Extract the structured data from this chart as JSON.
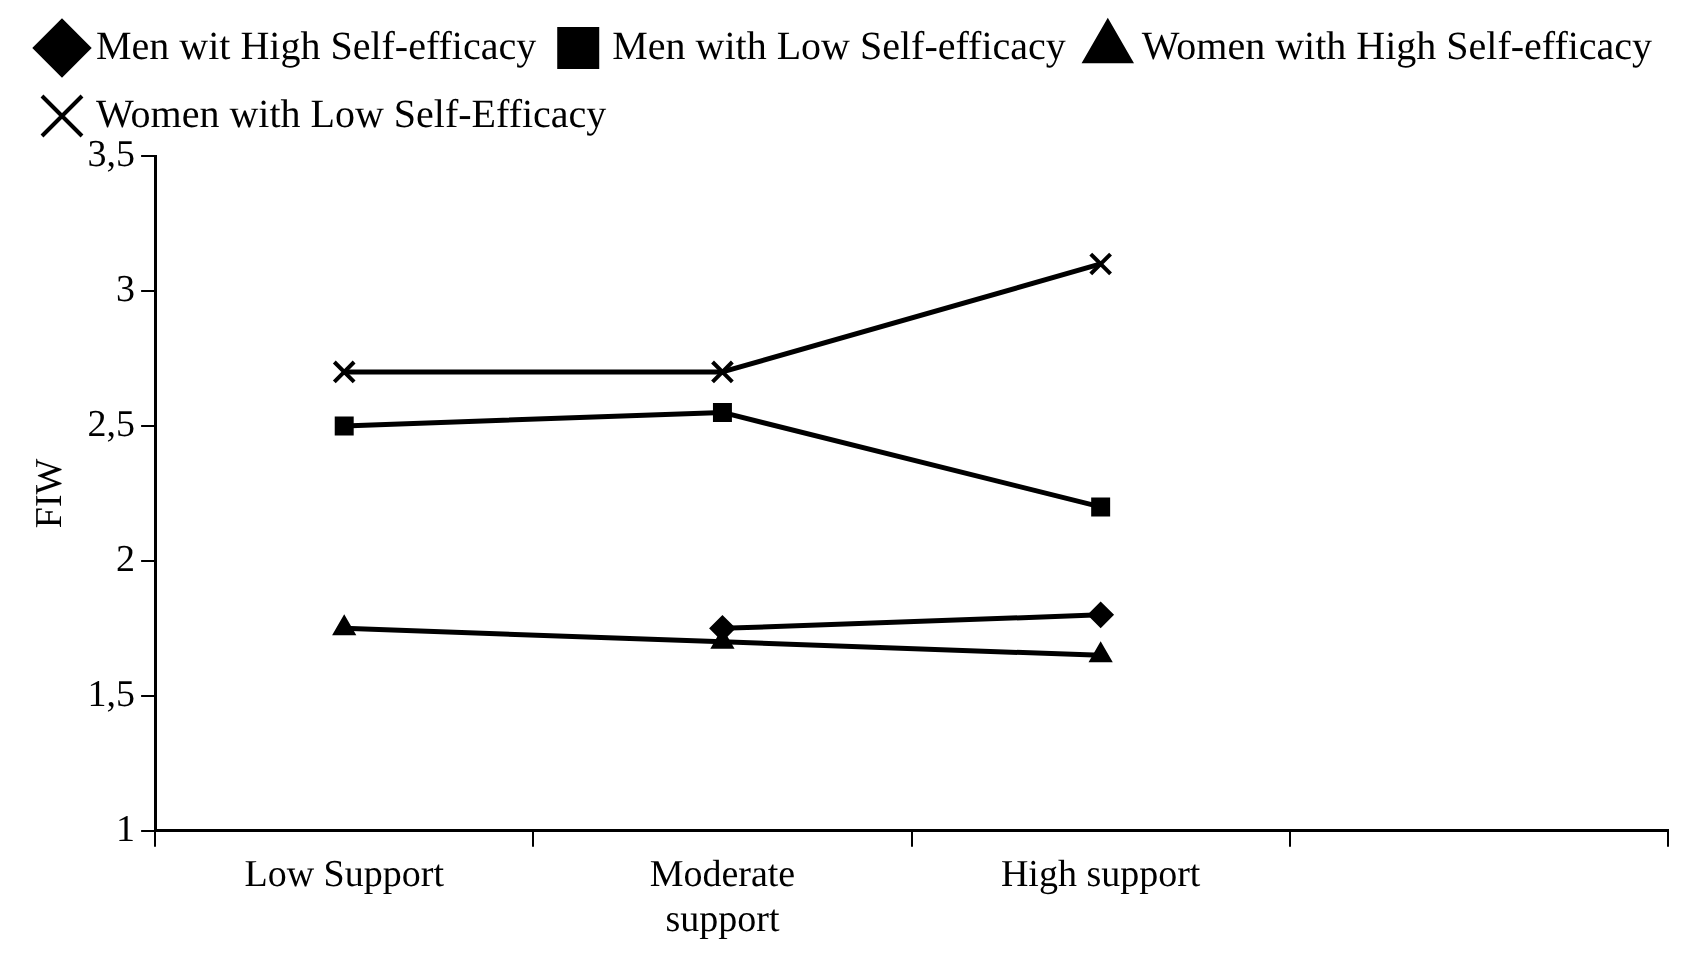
{
  "chart_data": {
    "type": "line",
    "ylabel": "FIW",
    "categories": [
      "Low Support",
      "Moderate support",
      "High support",
      null
    ],
    "series": [
      {
        "name": "Men wit High Self-efficacy",
        "color": "#000000",
        "marker": "diamond",
        "values": [
          null,
          1.75,
          1.8,
          null
        ]
      },
      {
        "name": "Men with Low Self-efficacy",
        "color": "#000000",
        "marker": "square",
        "values": [
          2.5,
          2.55,
          2.2,
          null
        ]
      },
      {
        "name": "Women with High Self-efficacy",
        "color": "#000000",
        "marker": "triangle",
        "values": [
          1.75,
          1.7,
          1.65,
          null
        ]
      },
      {
        "name": "Women with Low Self-Efficacy",
        "color": "#000000",
        "marker": "cross",
        "values": [
          2.7,
          2.7,
          3.1,
          null
        ]
      }
    ],
    "ylim": [
      1,
      3.5
    ],
    "yticks": [
      1,
      {
        "value": 1.5,
        "label": "1,5"
      },
      2,
      {
        "value": 2.5,
        "label": "2,5"
      },
      3,
      {
        "value": 3.5,
        "label": "3,5"
      }
    ],
    "grid": false,
    "legend": "top",
    "line_style": "solid"
  }
}
